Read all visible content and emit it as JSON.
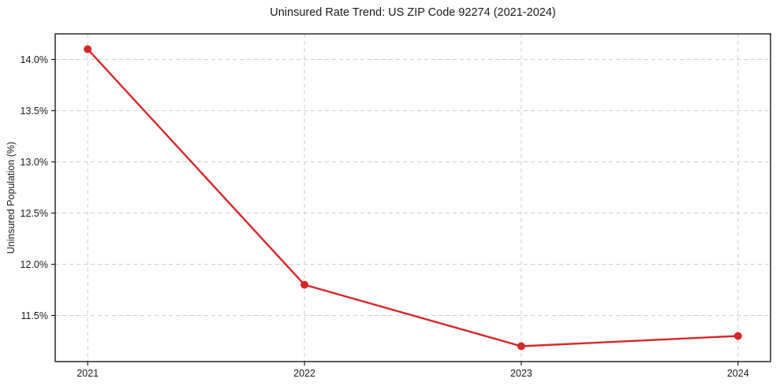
{
  "chart_data": {
    "type": "line",
    "title": "Uninsured Rate Trend: US ZIP Code 92274 (2021-2024)",
    "xlabel": "",
    "ylabel": "Uninsured Population (%)",
    "x": [
      2021,
      2022,
      2023,
      2024
    ],
    "xtick_labels": [
      "2021",
      "2022",
      "2023",
      "2024"
    ],
    "values": [
      14.1,
      11.8,
      11.2,
      11.3
    ],
    "yticks": [
      11.5,
      12.0,
      12.5,
      13.0,
      13.5,
      14.0
    ],
    "ytick_labels": [
      "11.5%",
      "12.0%",
      "12.5%",
      "13.0%",
      "13.5%",
      "14.0%"
    ],
    "xlim": [
      2020.85,
      2024.15
    ],
    "ylim": [
      11.05,
      14.25
    ],
    "grid": true,
    "grid_style": "dashed",
    "legend": false,
    "line_color": "#d62728",
    "marker": "circle",
    "grid_color": "#cccccc",
    "spine_color": "#1a1a1a",
    "background_color": "#ffffff"
  }
}
